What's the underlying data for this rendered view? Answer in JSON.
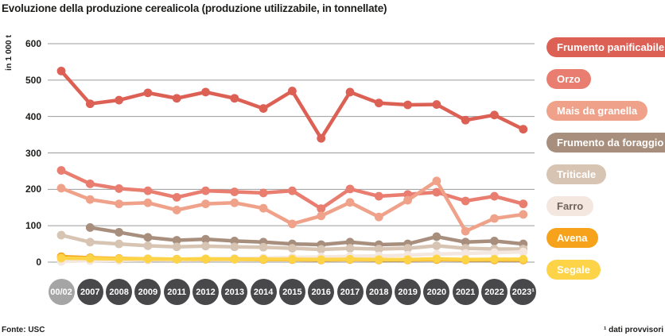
{
  "title": "Evoluzione della produzione cerealicola (produzione utilizzabile, in tonnellate)",
  "y_axis_label": "in 1 000 t",
  "source": "Fonte: USC",
  "footnote": "¹ dati provvisori",
  "colors": {
    "grid": "#9b9b9b",
    "title_text": "#1d1d1b",
    "year_circle": "#48484a",
    "year_circle_first": "#a5a5a5",
    "year_text": "#ffffff"
  },
  "chart_data": {
    "type": "line",
    "title": "Evoluzione della produzione cerealicola (produzione utilizzabile, in tonnellate)",
    "ylabel": "in 1 000 t",
    "ylim": [
      0,
      600
    ],
    "y_ticks": [
      600,
      500,
      400,
      300,
      200,
      100,
      0
    ],
    "grid": true,
    "legend_position": "right",
    "categories": [
      "00/02",
      "2007",
      "2008",
      "2009",
      "2011",
      "2012",
      "2013",
      "2014",
      "2015",
      "2016",
      "2017",
      "2018",
      "2019",
      "2020",
      "2021",
      "2022",
      "2023¹"
    ],
    "series": [
      {
        "name": "Frumento panificabile",
        "color": "#dd6055",
        "label_text_color": "#ffffff",
        "values": [
          525,
          435,
          445,
          465,
          450,
          467,
          450,
          422,
          470,
          340,
          467,
          437,
          432,
          433,
          390,
          404,
          365
        ]
      },
      {
        "name": "Orzo",
        "color": "#e87d70",
        "label_text_color": "#ffffff",
        "values": [
          252,
          215,
          202,
          196,
          178,
          196,
          193,
          190,
          196,
          147,
          201,
          181,
          186,
          192,
          168,
          181,
          160
        ]
      },
      {
        "name": "Mais da granella",
        "color": "#f0a189",
        "label_text_color": "#ffffff",
        "values": [
          203,
          172,
          160,
          163,
          143,
          160,
          163,
          148,
          105,
          127,
          164,
          124,
          170,
          223,
          85,
          120,
          131
        ]
      },
      {
        "name": "Frumento da foraggio",
        "color": "#a78e7d",
        "label_text_color": "#ffffff",
        "values": [
          null,
          95,
          82,
          68,
          60,
          63,
          58,
          55,
          50,
          48,
          55,
          48,
          50,
          70,
          55,
          58,
          50
        ]
      },
      {
        "name": "Triticale",
        "color": "#d7c4b3",
        "label_text_color": "#ffffff",
        "values": [
          74,
          55,
          50,
          45,
          42,
          44,
          42,
          41,
          38,
          35,
          38,
          36,
          38,
          45,
          38,
          36,
          36
        ]
      },
      {
        "name": "Farro",
        "color": "#f3e7e0",
        "label_text_color": "#6f655c",
        "values": [
          2,
          4,
          5,
          6,
          8,
          9,
          10,
          11,
          13,
          14,
          16,
          17,
          19,
          22,
          24,
          26,
          28
        ]
      },
      {
        "name": "Avena",
        "color": "#f6a21b",
        "label_text_color": "#ffffff",
        "values": [
          15,
          12,
          10,
          9,
          8,
          8,
          8,
          7,
          7,
          6,
          7,
          6,
          6,
          7,
          6,
          6,
          6
        ]
      },
      {
        "name": "Segale",
        "color": "#fdd348",
        "label_text_color": "#ffffff",
        "values": [
          11,
          10,
          9,
          9,
          8,
          9,
          8,
          8,
          8,
          7,
          8,
          7,
          7,
          9,
          7,
          8,
          8
        ]
      }
    ]
  }
}
